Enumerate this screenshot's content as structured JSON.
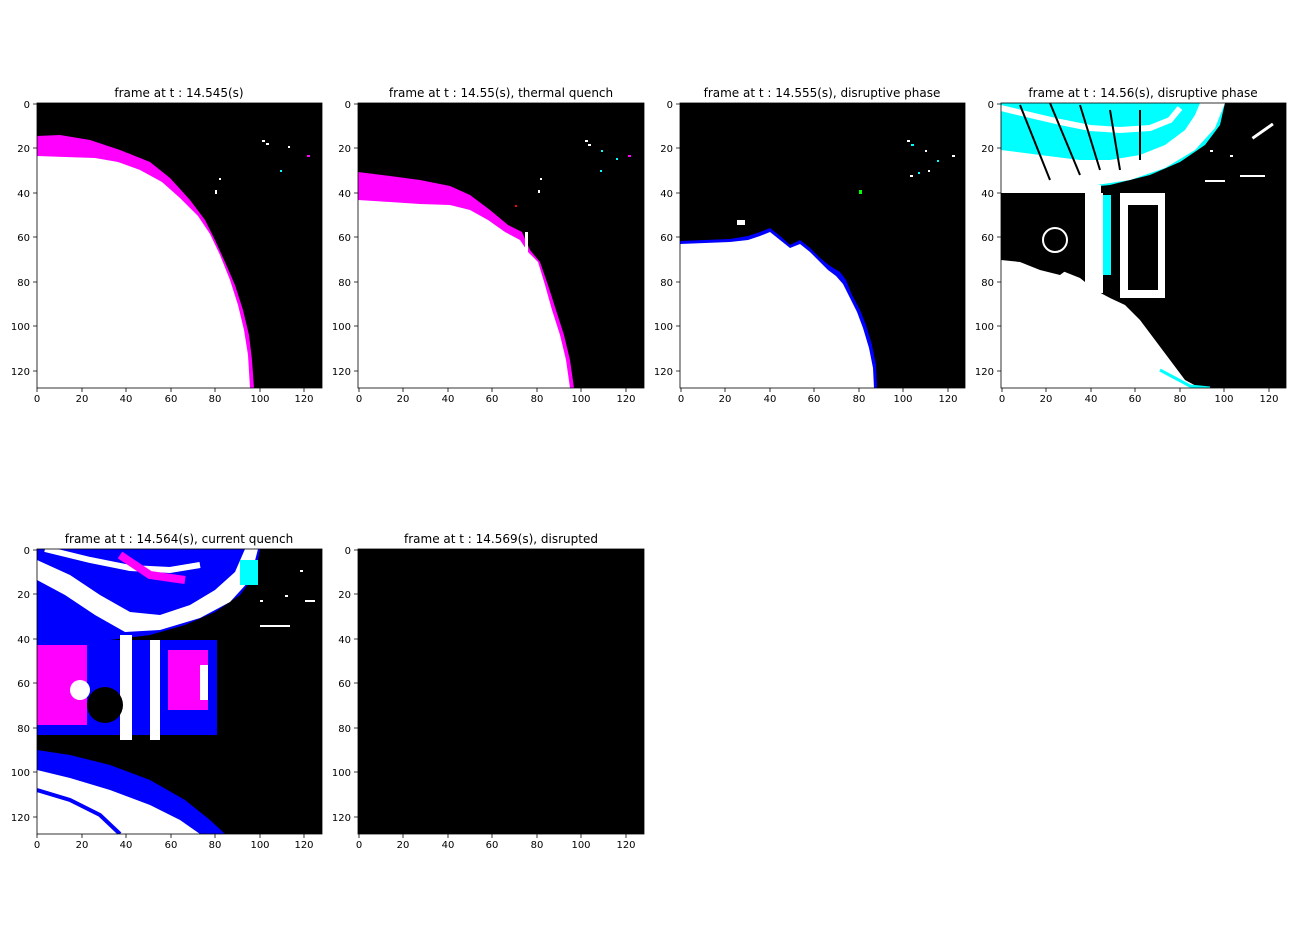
{
  "chart_data": [
    {
      "type": "heatmap",
      "title": "frame at t : 14.545(s)",
      "xlim": [
        0,
        128
      ],
      "ylim": [
        128,
        0
      ],
      "xticks": [
        "0",
        "20",
        "40",
        "60",
        "80",
        "100",
        "120"
      ],
      "yticks": [
        "0",
        "20",
        "40",
        "60",
        "80",
        "100",
        "120"
      ],
      "image_content": "white plasma region lower-left bounded by curved edge with magenta rim; black elsewhere; small scattered bright specks upper right",
      "colors": {
        "background": "#000000",
        "plasma": "#ffffff",
        "rim": "#ff00ff"
      }
    },
    {
      "type": "heatmap",
      "title": "frame at t : 14.55(s), thermal quench",
      "xlim": [
        0,
        128
      ],
      "ylim": [
        128,
        0
      ],
      "xticks": [
        "0",
        "20",
        "40",
        "60",
        "80",
        "100",
        "120"
      ],
      "yticks": [
        "0",
        "20",
        "40",
        "60",
        "80",
        "100",
        "120"
      ],
      "image_content": "white plasma region lower-left with magenta rim, edge lower than previous frame; black background with specks",
      "colors": {
        "background": "#000000",
        "plasma": "#ffffff",
        "rim": "#ff00ff"
      }
    },
    {
      "type": "heatmap",
      "title": "frame at t : 14.555(s), disruptive phase",
      "xlim": [
        0,
        128
      ],
      "ylim": [
        128,
        0
      ],
      "xticks": [
        "0",
        "20",
        "40",
        "60",
        "80",
        "100",
        "120"
      ],
      "yticks": [
        "0",
        "20",
        "40",
        "60",
        "80",
        "100",
        "120"
      ],
      "image_content": "white region lower-left with jagged top edge near y=60, thin blue rim; black background",
      "colors": {
        "background": "#000000",
        "plasma": "#ffffff",
        "rim": "#0000ff"
      }
    },
    {
      "type": "heatmap",
      "title": "frame at t : 14.56(s), disruptive phase",
      "xlim": [
        0,
        128
      ],
      "ylim": [
        128,
        0
      ],
      "xticks": [
        "0",
        "20",
        "40",
        "60",
        "80",
        "100",
        "120"
      ],
      "yticks": [
        "0",
        "20",
        "40",
        "60",
        "80",
        "100",
        "120"
      ],
      "image_content": "vessel structures visible: cyan and white curved band at top, dark structures with white pillars in middle, white region lower-left",
      "colors": {
        "background": "#000000",
        "bright": "#ffffff",
        "cyan": "#00ffff",
        "blue": "#0000ff"
      }
    },
    {
      "type": "heatmap",
      "title": "frame at t : 14.564(s), current quench",
      "xlim": [
        0,
        128
      ],
      "ylim": [
        128,
        0
      ],
      "xticks": [
        "0",
        "20",
        "40",
        "60",
        "80",
        "100",
        "120"
      ],
      "yticks": [
        "0",
        "20",
        "40",
        "60",
        "80",
        "100",
        "120"
      ],
      "image_content": "vessel structures in white, blue and magenta: curved bands at top and bottom, block of structures in middle-left",
      "colors": {
        "background": "#000000",
        "bright": "#ffffff",
        "blue": "#0000ff",
        "magenta": "#ff00ff"
      }
    },
    {
      "type": "heatmap",
      "title": "frame at t : 14.569(s), disrupted",
      "xlim": [
        0,
        128
      ],
      "ylim": [
        128,
        0
      ],
      "xticks": [
        "0",
        "20",
        "40",
        "60",
        "80",
        "100",
        "120"
      ],
      "yticks": [
        "0",
        "20",
        "40",
        "60",
        "80",
        "100",
        "120"
      ],
      "image_content": "entirely black frame",
      "colors": {
        "background": "#000000"
      }
    }
  ]
}
